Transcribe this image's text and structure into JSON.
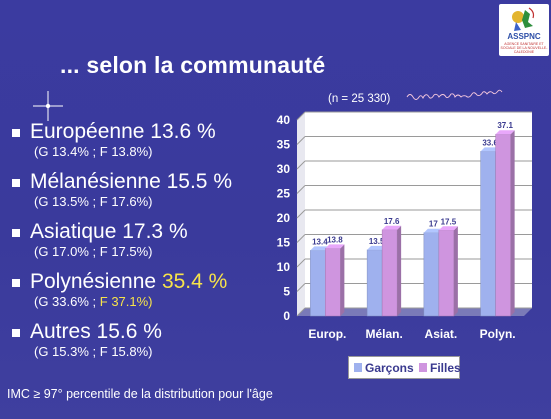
{
  "title": "... selon la communauté",
  "communities": [
    {
      "name": "Européenne",
      "value": "13.6 %",
      "detail_g": "(G 13.4% ;",
      "detail_f": "F 13.8%)",
      "highlight": false
    },
    {
      "name": "Mélanésienne",
      "value": "15.5 %",
      "detail_g": "(G 13.5% ;",
      "detail_f": "F 17.6%)",
      "highlight": false
    },
    {
      "name": "Asiatique",
      "value": "17.3 %",
      "detail_g": "(G 17.0% ;",
      "detail_f": "F 17.5%)",
      "highlight": false
    },
    {
      "name": "Polynésienne",
      "value": "35.4 %",
      "detail_g": "(G 33.6% ;",
      "detail_f": "F 37.1%)",
      "highlight": true
    },
    {
      "name": "Autres",
      "value": "15.6 %",
      "detail_g": "(G 15.3% ;",
      "detail_f": "F 15.8%)",
      "highlight": false
    }
  ],
  "footnote": "IMC ≥ 97° percentile de la distribution pour l'âge",
  "n_label": "(n = 25 330)",
  "logo": {
    "text": "ASSPNC",
    "subtext": "AGENCE SANITAIRE ET SOCIALE DE LA NOUVELLE-CALEDONIE"
  },
  "chart_data": {
    "type": "bar",
    "categories": [
      "Europ.",
      "Mélan.",
      "Asiat.",
      "Polyn."
    ],
    "series": [
      {
        "name": "Garçons",
        "values": [
          13.4,
          13.5,
          17,
          33.6
        ],
        "labels": [
          "13.4",
          "13.5",
          "17",
          "33.6"
        ],
        "color": "#9fb1ee"
      },
      {
        "name": "Filles",
        "values": [
          13.8,
          17.6,
          17.5,
          37.1
        ],
        "labels": [
          "13.8",
          "17.6",
          "17.5",
          "37.1"
        ],
        "color": "#cf95df"
      }
    ],
    "ylim": [
      0,
      40
    ],
    "yticks": [
      0,
      5,
      10,
      15,
      20,
      25,
      30,
      35,
      40
    ],
    "grid": true,
    "legend_position": "bottom",
    "colors": {
      "wall": "#ffffff",
      "floor": "#7a7ab8",
      "grid": "#9a9a9a",
      "axis_text": "#ffffff"
    }
  }
}
